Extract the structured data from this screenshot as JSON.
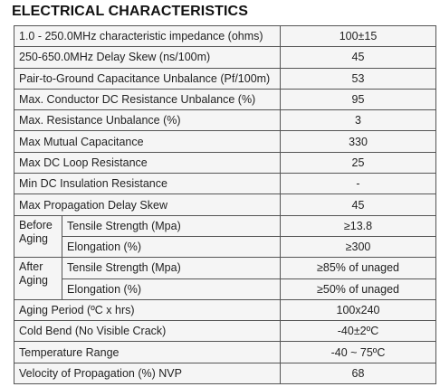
{
  "heading": "ELECTRICAL CHARACTERISTICS",
  "rows": [
    {
      "label": "1.0 - 250.0MHz characteristic impedance (ohms)",
      "value": "100±15"
    },
    {
      "label": "250-650.0MHz Delay Skew (ns/100m)",
      "value": "45"
    },
    {
      "label": "Pair-to-Ground Capacitance Unbalance (Pf/100m)",
      "value": "53"
    },
    {
      "label": "Max. Conductor DC Resistance Unbalance (%)",
      "value": "95"
    },
    {
      "label": "Max. Resistance Unbalance (%)",
      "value": "3"
    },
    {
      "label": "Max Mutual Capacitance",
      "value": "330"
    },
    {
      "label": "Max DC Loop Resistance",
      "value": "25"
    },
    {
      "label": "Min DC Insulation Resistance",
      "value": "-"
    },
    {
      "label": "Max Propagation Delay Skew",
      "value": "45"
    }
  ],
  "before_aging": {
    "group_label": "Before Aging",
    "tensile_label": "Tensile Strength (Mpa)",
    "tensile_value": "≥13.8",
    "elongation_label": "Elongation (%)",
    "elongation_value": "≥300"
  },
  "after_aging": {
    "group_label": "After Aging",
    "tensile_label": "Tensile Strength (Mpa)",
    "tensile_value": "≥85% of unaged",
    "elongation_label": "Elongation (%)",
    "elongation_value": "≥50% of unaged"
  },
  "rows_tail": [
    {
      "label": "Aging Period (ºC x hrs)",
      "value": "100x240"
    },
    {
      "label": "Cold Bend (No Visible Crack)",
      "value": "-40±2ºC"
    },
    {
      "label": "Temperature Range",
      "value": "-40 ~ 75ºC"
    },
    {
      "label": "Velocity of Propagation (%) NVP",
      "value": "68"
    }
  ]
}
